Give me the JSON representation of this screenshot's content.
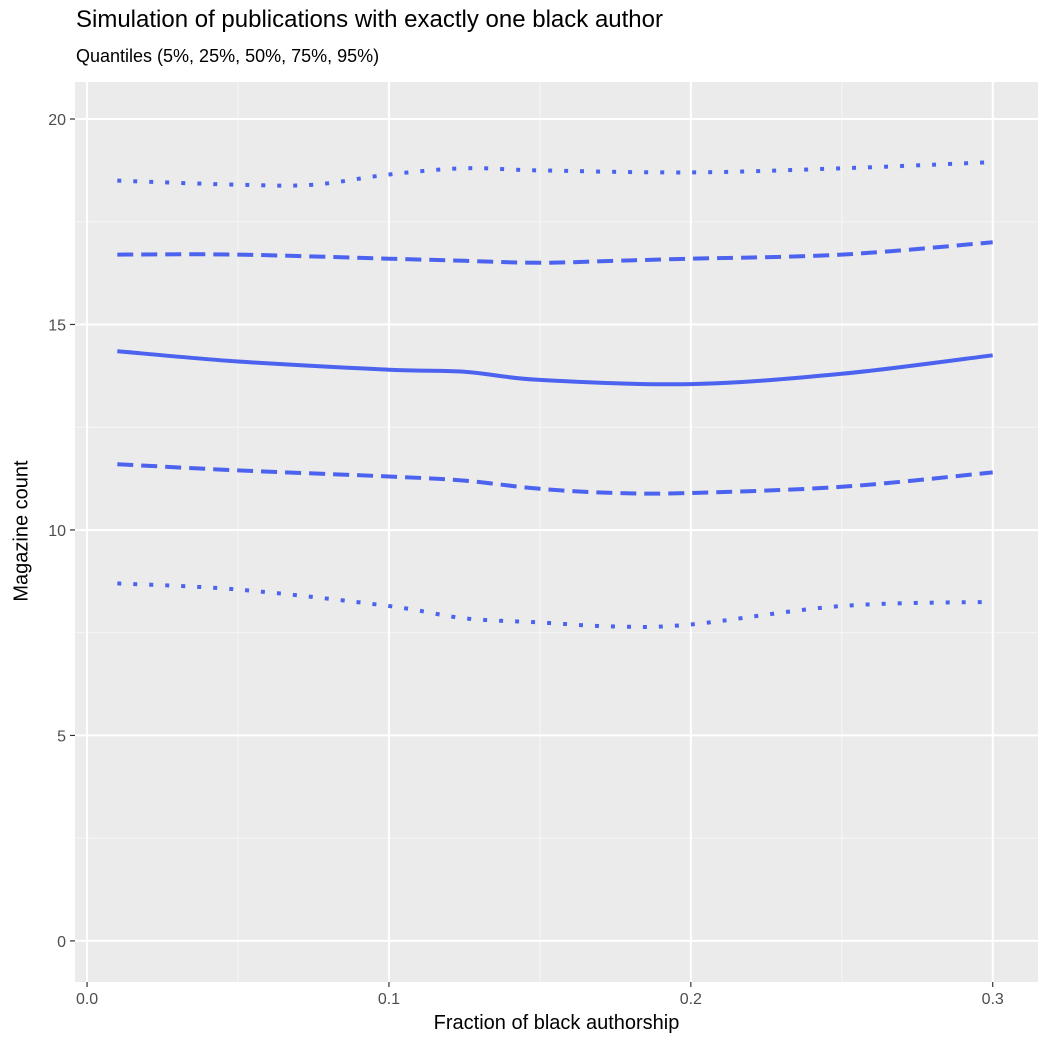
{
  "chart_data": {
    "type": "line",
    "title": "Simulation of publications with exactly one black author",
    "subtitle": "Quantiles (5%, 25%, 50%, 75%, 95%)",
    "xlabel": "Fraction of black authorship",
    "ylabel": "Magazine count",
    "xlim": [
      -0.004,
      0.315
    ],
    "ylim": [
      -1.0,
      20.9
    ],
    "x_ticks": [
      0.0,
      0.1,
      0.2,
      0.3
    ],
    "x_tick_labels": [
      "0.0",
      "0.1",
      "0.2",
      "0.3"
    ],
    "y_ticks": [
      0,
      5,
      10,
      15,
      20
    ],
    "y_tick_labels": [
      "0",
      "5",
      "10",
      "15",
      "20"
    ],
    "grid": true,
    "panel_background": "#ebebeb",
    "line_color": "#4c63f0",
    "series": [
      {
        "linestyle": "dotted",
        "x": [
          0.01,
          0.05,
          0.075,
          0.1,
          0.125,
          0.15,
          0.2,
          0.25,
          0.3
        ],
        "values": [
          18.5,
          18.4,
          18.4,
          18.65,
          18.8,
          18.75,
          18.7,
          18.8,
          18.95
        ]
      },
      {
        "linestyle": "dashed",
        "x": [
          0.01,
          0.05,
          0.1,
          0.125,
          0.15,
          0.175,
          0.2,
          0.25,
          0.3
        ],
        "values": [
          16.7,
          16.7,
          16.6,
          16.55,
          16.5,
          16.55,
          16.6,
          16.7,
          17.0
        ]
      },
      {
        "linestyle": "solid",
        "x": [
          0.01,
          0.05,
          0.1,
          0.125,
          0.15,
          0.2,
          0.25,
          0.3
        ],
        "values": [
          14.35,
          14.1,
          13.9,
          13.85,
          13.65,
          13.55,
          13.8,
          14.25
        ]
      },
      {
        "linestyle": "dashed",
        "x": [
          0.01,
          0.05,
          0.1,
          0.125,
          0.15,
          0.175,
          0.2,
          0.25,
          0.3
        ],
        "values": [
          11.6,
          11.45,
          11.3,
          11.2,
          11.0,
          10.9,
          10.9,
          11.05,
          11.4
        ]
      },
      {
        "linestyle": "dotted",
        "x": [
          0.01,
          0.05,
          0.1,
          0.125,
          0.15,
          0.175,
          0.2,
          0.25,
          0.3
        ],
        "values": [
          8.7,
          8.55,
          8.15,
          7.85,
          7.75,
          7.65,
          7.7,
          8.15,
          8.25
        ]
      }
    ]
  }
}
